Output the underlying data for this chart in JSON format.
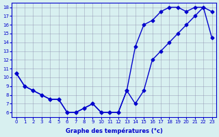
{
  "upper_x": [
    0,
    1,
    2,
    3,
    4,
    5,
    6,
    7,
    8,
    9,
    10,
    11,
    12,
    13,
    14,
    15,
    16,
    17,
    18,
    19,
    20,
    21,
    22,
    23
  ],
  "upper_y": [
    10.5,
    9.0,
    8.5,
    8.0,
    7.5,
    7.5,
    6.0,
    6.0,
    6.5,
    7.0,
    6.0,
    6.0,
    6.0,
    8.5,
    13.5,
    16.0,
    16.5,
    17.5,
    18.0,
    18.0,
    17.5,
    18.0,
    18.0,
    17.5
  ],
  "lower_x": [
    0,
    1,
    2,
    3,
    4,
    5,
    6,
    7,
    8,
    9,
    10,
    11,
    12,
    13,
    14,
    15,
    16,
    17,
    18,
    19,
    20,
    21,
    22,
    23
  ],
  "lower_y": [
    10.5,
    9.0,
    8.5,
    8.0,
    7.5,
    7.5,
    6.0,
    6.0,
    6.5,
    7.0,
    6.0,
    6.0,
    6.0,
    8.5,
    7.0,
    8.5,
    12.0,
    13.0,
    14.0,
    15.0,
    16.0,
    17.0,
    18.0,
    14.5
  ],
  "line_color": "#0000cc",
  "bg_color": "#d8f0f0",
  "xlabel": "Graphe des températures (°c)",
  "xticks": [
    0,
    1,
    2,
    3,
    4,
    5,
    6,
    7,
    8,
    9,
    10,
    11,
    12,
    13,
    14,
    15,
    16,
    17,
    18,
    19,
    20,
    21,
    22,
    23
  ],
  "yticks": [
    6,
    7,
    8,
    9,
    10,
    11,
    12,
    13,
    14,
    15,
    16,
    17,
    18
  ],
  "xlim": [
    -0.5,
    23.5
  ],
  "ylim": [
    5.5,
    18.5
  ]
}
